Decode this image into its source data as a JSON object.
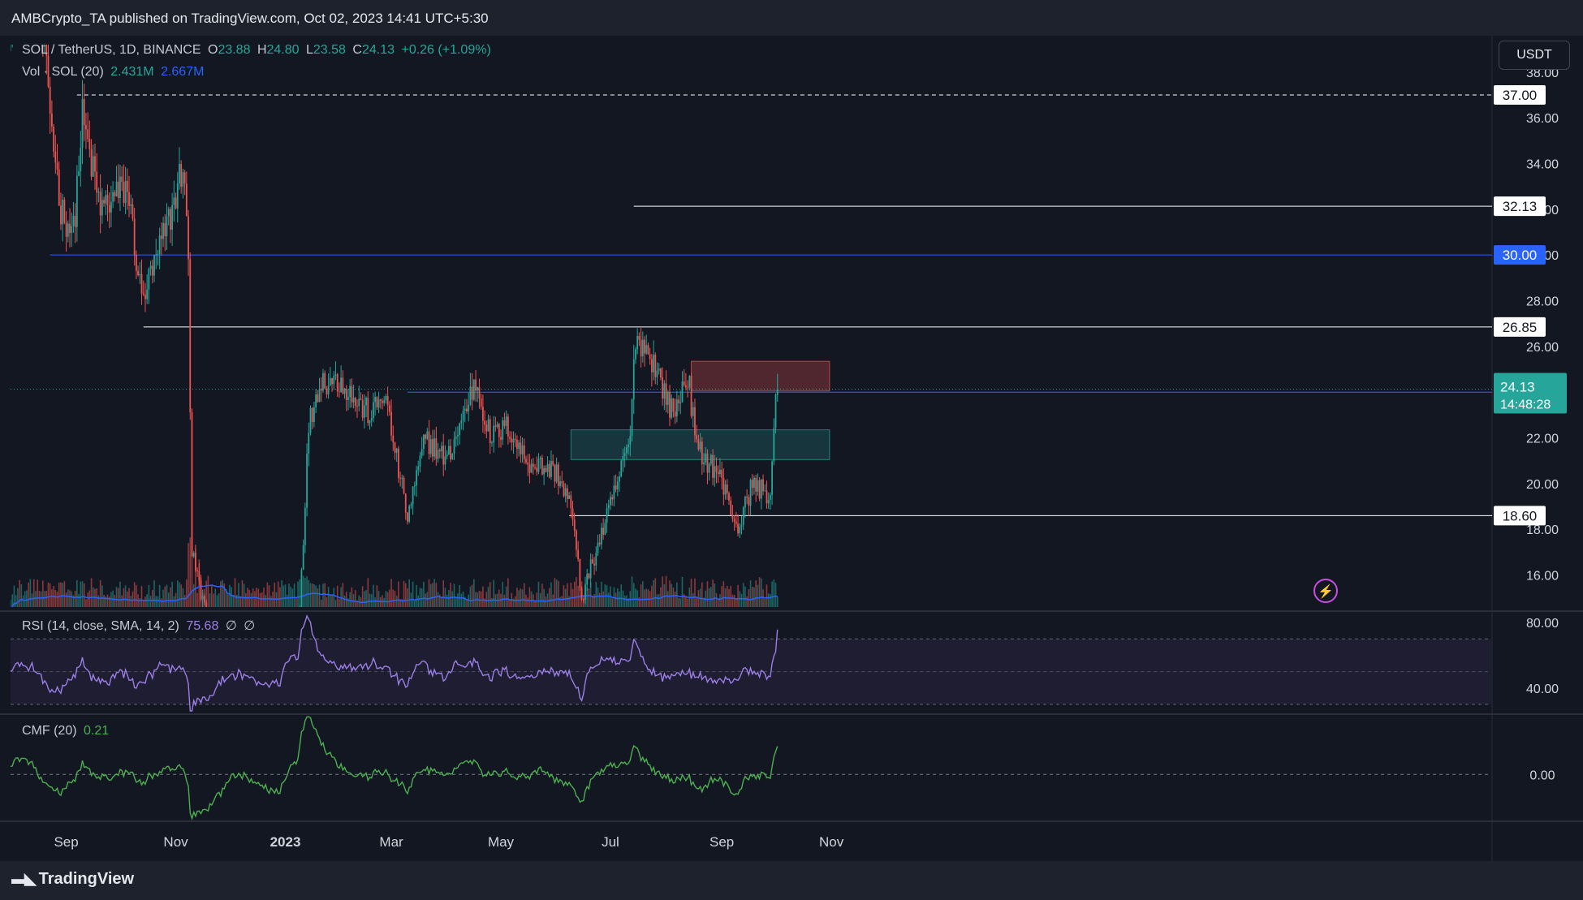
{
  "publisher": "AMBCrypto_TA published on TradingView.com, Oct 02, 2023 14:41 UTC+5:30",
  "quote_currency": "USDT",
  "logo_text": "TradingView",
  "icons": {
    "logo": "tradingview-logo-icon",
    "flash": "lightning-icon"
  },
  "legend": {
    "symbol": "SOL / TetherUS, 1D, BINANCE",
    "o_label": "O",
    "o": "23.88",
    "h_label": "H",
    "h": "24.80",
    "l_label": "L",
    "l": "23.58",
    "c_label": "C",
    "c": "24.13",
    "change": "+0.26 (+1.09%)",
    "vol_label": "Vol · SOL (20)",
    "vol": "2.431M",
    "vol_ma": "2.667M"
  },
  "rsi": {
    "label": "RSI (14, close, SMA, 14, 2)",
    "value": "75.68",
    "extra1": "∅",
    "extra2": "∅"
  },
  "cmf": {
    "label": "CMF (20)",
    "value": "0.21"
  },
  "colors": {
    "up": "#26a69a",
    "down": "#ef5350",
    "vol_ma": "#2962ff",
    "rsi": "#9c7ee6",
    "cmf": "#4caf50",
    "blue_level": "#2962ff"
  },
  "chart_data": [
    {
      "type": "candlestick",
      "symbol": "SOL/USDT",
      "interval": "1D",
      "x_axis_ticks": [
        "Sep",
        "Nov",
        "2023",
        "Mar",
        "May",
        "Jul",
        "Sep",
        "Nov"
      ],
      "y_axis_ticks": [
        16.0,
        18.0,
        20.0,
        22.0,
        24.0,
        26.0,
        28.0,
        30.0,
        32.0,
        34.0,
        36.0,
        38.0
      ],
      "ylim": [
        14.6,
        39.2
      ],
      "last_price": 24.13,
      "countdown": "14:48:28",
      "levels": [
        {
          "value": 37.0,
          "label": "37.00",
          "style": "dashed",
          "color": "#ffffff",
          "from": "2022-09-07"
        },
        {
          "value": 32.13,
          "label": "32.13",
          "style": "solid",
          "color": "#ffffff",
          "from": "2023-07-14"
        },
        {
          "value": 30.0,
          "label": "30.00",
          "style": "solid",
          "color": "#2962ff",
          "from": "2022-08-23"
        },
        {
          "value": 26.85,
          "label": "26.85",
          "style": "solid",
          "color": "#ffffff",
          "from": "2022-10-14"
        },
        {
          "value": 24.0,
          "label": "24.00",
          "style": "solid",
          "color": "#2962ff",
          "from": "2023-03-10"
        },
        {
          "value": 18.6,
          "label": "18.60",
          "style": "solid",
          "color": "#ffffff",
          "from": "2023-06-08"
        }
      ],
      "zones": [
        {
          "type": "supply",
          "top": 25.35,
          "bottom": 24.05,
          "from": "2023-08-15",
          "to": "2023-10-31",
          "color": "#ef5350"
        },
        {
          "type": "demand",
          "top": 22.35,
          "bottom": 21.05,
          "from": "2023-06-09",
          "to": "2023-10-31",
          "color": "#26a69a"
        }
      ],
      "keypoints": [
        [
          "2022-08-01",
          40.5
        ],
        [
          "2022-08-13",
          44.0
        ],
        [
          "2022-08-20",
          38.5
        ],
        [
          "2022-08-29",
          32.0
        ],
        [
          "2022-09-05",
          31.0
        ],
        [
          "2022-09-10",
          36.0
        ],
        [
          "2022-09-20",
          32.0
        ],
        [
          "2022-10-05",
          33.0
        ],
        [
          "2022-10-13",
          28.0
        ],
        [
          "2022-10-20",
          29.5
        ],
        [
          "2022-10-30",
          32.0
        ],
        [
          "2022-11-05",
          34.0
        ],
        [
          "2022-11-08",
          30.0
        ],
        [
          "2022-11-10",
          17.0
        ],
        [
          "2022-11-20",
          13.5
        ],
        [
          "2022-12-10",
          13.5
        ],
        [
          "2022-12-29",
          10.0
        ],
        [
          "2023-01-08",
          13.0
        ],
        [
          "2023-01-14",
          22.5
        ],
        [
          "2023-01-20",
          24.5
        ],
        [
          "2023-02-01",
          24.5
        ],
        [
          "2023-02-10",
          23.5
        ],
        [
          "2023-02-18",
          23.0
        ],
        [
          "2023-02-25",
          24.0
        ],
        [
          "2023-03-10",
          18.5
        ],
        [
          "2023-03-20",
          22.0
        ],
        [
          "2023-04-01",
          21.0
        ],
        [
          "2023-04-17",
          24.5
        ],
        [
          "2023-04-25",
          22.0
        ],
        [
          "2023-05-05",
          22.5
        ],
        [
          "2023-05-15",
          21.0
        ],
        [
          "2023-06-01",
          20.5
        ],
        [
          "2023-06-09",
          19.0
        ],
        [
          "2023-06-15",
          15.0
        ],
        [
          "2023-06-22",
          16.8
        ],
        [
          "2023-07-01",
          19.0
        ],
        [
          "2023-07-12",
          22.0
        ],
        [
          "2023-07-15",
          26.5
        ],
        [
          "2023-07-24",
          25.5
        ],
        [
          "2023-08-05",
          23.0
        ],
        [
          "2023-08-13",
          24.8
        ],
        [
          "2023-08-18",
          21.5
        ],
        [
          "2023-08-30",
          20.5
        ],
        [
          "2023-09-10",
          18.0
        ],
        [
          "2023-09-18",
          20.0
        ],
        [
          "2023-09-28",
          19.5
        ],
        [
          "2023-10-01",
          23.9
        ],
        [
          "2023-10-02",
          24.13
        ]
      ]
    },
    {
      "type": "line",
      "name": "RSI (14, close, SMA, 14, 2)",
      "y_axis_ticks": [
        40.0,
        80.0
      ],
      "bands": [
        30,
        50,
        70
      ],
      "ylim": [
        25,
        85
      ],
      "last_value": 75.68
    },
    {
      "type": "line",
      "name": "CMF (20)",
      "y_axis_ticks": [
        0.0
      ],
      "ylim": [
        -0.35,
        0.45
      ],
      "last_value": 0.21
    }
  ]
}
